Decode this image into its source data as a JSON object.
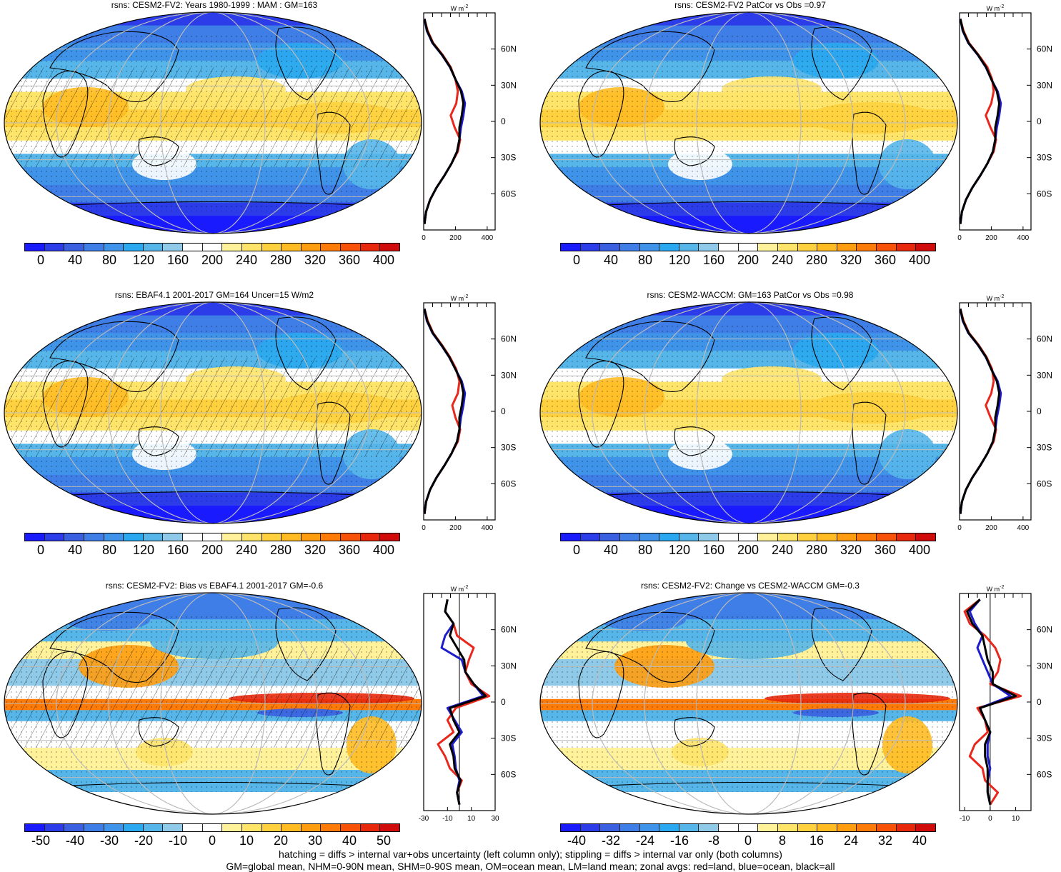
{
  "colors": {
    "abs": [
      "#1a1aff",
      "#2b3ce8",
      "#3a5fe0",
      "#3f7ee6",
      "#3f94ea",
      "#2aa9f0",
      "#56b6ea",
      "#8fcbe8",
      "#ffffff",
      "#ffffff",
      "#fff29a",
      "#ffe46a",
      "#ffd13f",
      "#ffbb22",
      "#ff9d10",
      "#ff7b08",
      "#f75208",
      "#e8280c",
      "#cf0b0b"
    ],
    "diff": [
      "#1a1aff",
      "#2b3ce8",
      "#3a5fe0",
      "#3f7ee6",
      "#3f94ea",
      "#2aa9f0",
      "#56b6ea",
      "#8fcbe8",
      "#ffffff",
      "#ffffff",
      "#fff29a",
      "#ffe46a",
      "#ffd13f",
      "#ffbb22",
      "#ff9d10",
      "#ff7b08",
      "#f75208",
      "#e8280c",
      "#cf0b0b"
    ],
    "land": "#e8281c",
    "ocean": "#1d1dcc",
    "all": "#000000"
  },
  "panels": [
    {
      "id": "p1",
      "title": "rsns: CESM2-FV2: Years 1980-1999 : MAM : GM=163",
      "map_style": "abs",
      "hatching": true,
      "stippling": true,
      "colorbar_labels": [
        "0",
        "40",
        "80",
        "120",
        "160",
        "200",
        "240",
        "280",
        "320",
        "360",
        "400"
      ],
      "zonal_unit": "W m",
      "zonal_unit_sup": "-2",
      "zonal_xticks": [
        "0",
        "200",
        "400"
      ],
      "zonal_xlim": [
        0,
        450
      ],
      "lat_ticks": [
        "60N",
        "30N",
        "0",
        "30S",
        "60S"
      ],
      "zonal": {
        "lat": [
          85,
          75,
          65,
          55,
          45,
          35,
          25,
          15,
          5,
          -5,
          -15,
          -25,
          -35,
          -45,
          -55,
          -65,
          -75,
          -85
        ],
        "land": [
          5,
          25,
          60,
          120,
          170,
          200,
          215,
          205,
          170,
          195,
          230,
          215,
          175,
          130,
          80,
          40,
          15,
          5
        ],
        "ocean": [
          5,
          20,
          55,
          115,
          165,
          200,
          240,
          260,
          250,
          235,
          225,
          210,
          175,
          130,
          80,
          40,
          15,
          5
        ],
        "all": [
          5,
          22,
          57,
          117,
          167,
          200,
          235,
          250,
          240,
          225,
          225,
          210,
          175,
          130,
          80,
          40,
          15,
          5
        ]
      }
    },
    {
      "id": "p2",
      "title": "rsns: CESM2-FV2 PatCor vs Obs =0.97",
      "map_style": "abs",
      "hatching": false,
      "stippling": true,
      "colorbar_labels": [
        "0",
        "40",
        "80",
        "120",
        "160",
        "200",
        "240",
        "280",
        "320",
        "360",
        "400"
      ],
      "zonal_unit": "W m",
      "zonal_unit_sup": "-2",
      "zonal_xticks": [
        "0",
        "200",
        "400"
      ],
      "zonal_xlim": [
        0,
        450
      ],
      "lat_ticks": [
        "60N",
        "30N",
        "0",
        "30S",
        "60S"
      ],
      "zonal": {
        "lat": [
          85,
          75,
          65,
          55,
          45,
          35,
          25,
          15,
          5,
          -5,
          -15,
          -25,
          -35,
          -45,
          -55,
          -65,
          -75,
          -85
        ],
        "land": [
          5,
          25,
          60,
          120,
          175,
          205,
          215,
          200,
          165,
          195,
          230,
          215,
          175,
          130,
          80,
          40,
          15,
          5
        ],
        "ocean": [
          5,
          20,
          55,
          115,
          165,
          200,
          240,
          260,
          250,
          235,
          225,
          210,
          175,
          130,
          80,
          40,
          15,
          5
        ],
        "all": [
          5,
          22,
          57,
          117,
          167,
          200,
          235,
          250,
          240,
          225,
          225,
          210,
          175,
          130,
          80,
          40,
          15,
          5
        ]
      }
    },
    {
      "id": "p3",
      "title": "rsns: EBAF4.1 2001-2017 GM=164 Uncer=15 W/m2",
      "map_style": "abs",
      "hatching": true,
      "stippling": true,
      "colorbar_labels": [
        "0",
        "40",
        "80",
        "120",
        "160",
        "200",
        "240",
        "280",
        "320",
        "360",
        "400"
      ],
      "zonal_unit": "W m",
      "zonal_unit_sup": "-2",
      "zonal_xticks": [
        "0",
        "200",
        "400"
      ],
      "zonal_xlim": [
        0,
        450
      ],
      "lat_ticks": [
        "60N",
        "30N",
        "0",
        "30S",
        "60S"
      ],
      "zonal": {
        "lat": [
          85,
          75,
          65,
          55,
          45,
          35,
          25,
          15,
          5,
          -5,
          -15,
          -25,
          -35,
          -45,
          -55,
          -65,
          -75,
          -85
        ],
        "land": [
          5,
          25,
          60,
          115,
          165,
          205,
          225,
          215,
          180,
          200,
          230,
          215,
          175,
          130,
          80,
          40,
          15,
          5
        ],
        "ocean": [
          5,
          20,
          55,
          110,
          160,
          200,
          240,
          260,
          250,
          235,
          225,
          210,
          175,
          130,
          80,
          40,
          15,
          5
        ],
        "all": [
          5,
          22,
          57,
          112,
          162,
          200,
          235,
          250,
          240,
          225,
          225,
          210,
          175,
          130,
          80,
          40,
          15,
          5
        ]
      }
    },
    {
      "id": "p4",
      "title": "rsns: CESM2-WACCM: GM=163 PatCor vs Obs =0.98",
      "map_style": "abs",
      "hatching": false,
      "stippling": true,
      "colorbar_labels": [
        "0",
        "40",
        "80",
        "120",
        "160",
        "200",
        "240",
        "280",
        "320",
        "360",
        "400"
      ],
      "zonal_unit": "W m",
      "zonal_unit_sup": "-2",
      "zonal_xticks": [
        "0",
        "200",
        "400"
      ],
      "zonal_xlim": [
        0,
        450
      ],
      "lat_ticks": [
        "60N",
        "30N",
        "0",
        "30S",
        "60S"
      ],
      "zonal": {
        "lat": [
          85,
          75,
          65,
          55,
          45,
          35,
          25,
          15,
          5,
          -5,
          -15,
          -25,
          -35,
          -45,
          -55,
          -65,
          -75,
          -85
        ],
        "land": [
          5,
          25,
          60,
          120,
          170,
          205,
          215,
          200,
          165,
          195,
          230,
          215,
          175,
          130,
          80,
          40,
          15,
          5
        ],
        "ocean": [
          5,
          20,
          55,
          115,
          165,
          200,
          240,
          260,
          250,
          235,
          225,
          210,
          175,
          130,
          80,
          40,
          15,
          5
        ],
        "all": [
          5,
          22,
          57,
          117,
          167,
          200,
          235,
          250,
          240,
          225,
          225,
          210,
          175,
          130,
          80,
          40,
          15,
          5
        ]
      }
    },
    {
      "id": "p5",
      "title": "rsns: CESM2-FV2: Bias vs EBAF4.1 2001-2017 GM=-0.6",
      "map_style": "diff",
      "hatching": true,
      "stippling": true,
      "colorbar_labels": [
        "-50",
        "-40",
        "-30",
        "-20",
        "-10",
        "0",
        "10",
        "20",
        "30",
        "40",
        "50"
      ],
      "zonal_unit": "W m",
      "zonal_unit_sup": "-2",
      "zonal_xticks": [
        "-30",
        "-10",
        "10",
        "30"
      ],
      "zonal_xlim": [
        -30,
        30
      ],
      "lat_ticks": [
        "60N",
        "30N",
        "0",
        "30S",
        "60S"
      ],
      "zonal": {
        "lat": [
          85,
          75,
          65,
          55,
          45,
          35,
          25,
          15,
          5,
          -5,
          -15,
          -25,
          -35,
          -45,
          -55,
          -65,
          -75,
          -85
        ],
        "land": [
          -10,
          -12,
          -5,
          -2,
          12,
          8,
          5,
          10,
          25,
          -3,
          -10,
          -5,
          -18,
          -12,
          -8,
          2,
          -2,
          0
        ],
        "ocean": [
          -10,
          -12,
          -5,
          -12,
          -15,
          2,
          5,
          12,
          20,
          -10,
          -4,
          2,
          -6,
          -4,
          -3,
          0,
          -2,
          0
        ],
        "all": [
          -10,
          -12,
          -5,
          -8,
          -2,
          4,
          5,
          12,
          22,
          -8,
          -5,
          0,
          -8,
          -5,
          -4,
          1,
          -2,
          0
        ]
      }
    },
    {
      "id": "p6",
      "title": "rsns: CESM2-FV2: Change vs CESM2-WACCM GM=-0.3",
      "map_style": "diff",
      "hatching": false,
      "stippling": true,
      "colorbar_labels": [
        "-40",
        "-32",
        "-24",
        "-16",
        "-8",
        "0",
        "8",
        "16",
        "24",
        "32",
        "40"
      ],
      "zonal_unit": "W m",
      "zonal_unit_sup": "-2",
      "zonal_xticks": [
        "-10",
        "0",
        "10"
      ],
      "zonal_xlim": [
        -12,
        16
      ],
      "lat_ticks": [
        "60N",
        "30N",
        "0",
        "30S",
        "60S"
      ],
      "zonal": {
        "lat": [
          85,
          75,
          65,
          55,
          45,
          35,
          25,
          15,
          5,
          -5,
          -15,
          -25,
          -35,
          -45,
          -55,
          -65,
          -75,
          -85
        ],
        "land": [
          -4,
          -10,
          -8,
          -2,
          2,
          4,
          3,
          0,
          12,
          -5,
          -2,
          -1,
          -6,
          -8,
          -3,
          -2,
          3,
          0
        ],
        "ocean": [
          -4,
          -8,
          -6,
          -3,
          -5,
          -3,
          -1,
          1,
          8,
          -4,
          -2,
          0,
          -1,
          -1,
          0,
          -1,
          -1,
          0
        ],
        "all": [
          -4,
          -9,
          -7,
          -3,
          -2,
          -1,
          1,
          1,
          10,
          -4,
          -2,
          0,
          -2,
          -2,
          -1,
          -1,
          -1,
          0
        ]
      }
    }
  ],
  "footer": {
    "line1": "hatching = diffs > internal var+obs uncertainty (left column only); stippling = diffs > internal var only (both columns)",
    "line2": "GM=global mean, NHM=0-90N mean, SHM=0-90S mean, OM=ocean mean, LM=land mean; zonal avgs: red=land, blue=ocean, black=all"
  }
}
